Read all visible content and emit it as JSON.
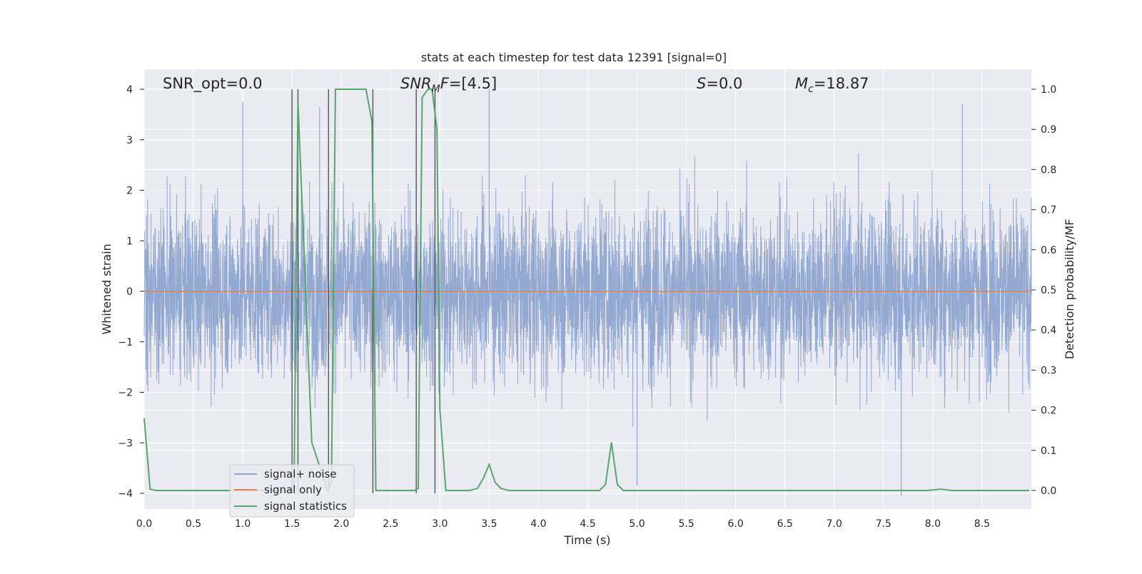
{
  "chart_data": {
    "type": "line",
    "title": "stats at each timestep for test data 12391 [signal=0]",
    "xlabel": "Time (s)",
    "ylabel_left": "Whitened strain",
    "ylabel_right": "Detection probability/MF",
    "xlim": [
      0.0,
      9.0
    ],
    "ylim_left": [
      -4.35,
      4.4
    ],
    "ylim_right": [
      -0.045,
      1.045
    ],
    "x_ticks": [
      "0.0",
      "0.5",
      "1.0",
      "1.5",
      "2.0",
      "2.5",
      "3.0",
      "3.5",
      "4.0",
      "4.5",
      "5.0",
      "5.5",
      "6.0",
      "6.5",
      "7.0",
      "7.5",
      "8.0",
      "8.5"
    ],
    "y_ticks_left": [
      "4",
      "3",
      "2",
      "1",
      "0",
      "−1",
      "−2",
      "−3",
      "−4"
    ],
    "y_ticks_right": [
      "1.0",
      "0.9",
      "0.8",
      "0.7",
      "0.6",
      "0.5",
      "0.4",
      "0.3",
      "0.2",
      "0.1",
      "0.0"
    ],
    "grid": true,
    "legend_position": "lower-left",
    "annotations": {
      "snr_opt": "SNR_opt=0.0",
      "snr_mf": "=[4.5]",
      "snr_mf_base": "SNR",
      "snr_mf_sub": "M",
      "snr_mf_f": "F",
      "s_var": "S",
      "s_val": "=0.0",
      "mc_base": "M",
      "mc_sub": "c",
      "mc_val": "=18.87"
    },
    "series": [
      {
        "name": "signal+ noise",
        "axis": "left",
        "color": "#8fa5cf",
        "description_values": "whitened noise, approx Gaussian, max 3.75 near t=1.0, min -4.05 near t=7.68",
        "sample_rate_hint": "dense",
        "envelope_typical": [
          -2.3,
          2.3
        ]
      },
      {
        "name": "signal only",
        "axis": "left",
        "color": "#dd8452",
        "x": [
          0.0,
          9.0
        ],
        "y": [
          0.0,
          0.0
        ]
      },
      {
        "name": "signal statistics",
        "axis": "right",
        "color": "#55a868",
        "x": [
          0.0,
          0.06,
          0.12,
          1.5,
          1.52,
          1.56,
          1.7,
          1.86,
          1.9,
          1.94,
          2.25,
          2.31,
          2.35,
          2.4,
          2.74,
          2.78,
          2.82,
          2.88,
          2.92,
          2.97,
          3.0,
          3.06,
          3.3,
          3.38,
          3.44,
          3.5,
          3.56,
          3.62,
          3.7,
          4.62,
          4.68,
          4.74,
          4.8,
          4.86,
          7.94,
          8.08,
          8.2,
          8.98
        ],
        "y": [
          0.18,
          0.003,
          0.0,
          0.0,
          0.0,
          0.97,
          0.12,
          0.0,
          0.02,
          1.0,
          1.0,
          0.92,
          0.0,
          0.0,
          0.0,
          0.005,
          0.98,
          1.0,
          1.0,
          0.9,
          0.2,
          0.0,
          0.0,
          0.005,
          0.03,
          0.065,
          0.02,
          0.005,
          0.0,
          0.0,
          0.015,
          0.12,
          0.015,
          0.0,
          0.0,
          0.003,
          0.0,
          0.0
        ]
      }
    ],
    "vertical_lines_x": [
      1.5,
      1.56,
      1.87,
      2.32,
      2.76,
      2.95
    ],
    "vertical_lines_color": "#555555"
  }
}
